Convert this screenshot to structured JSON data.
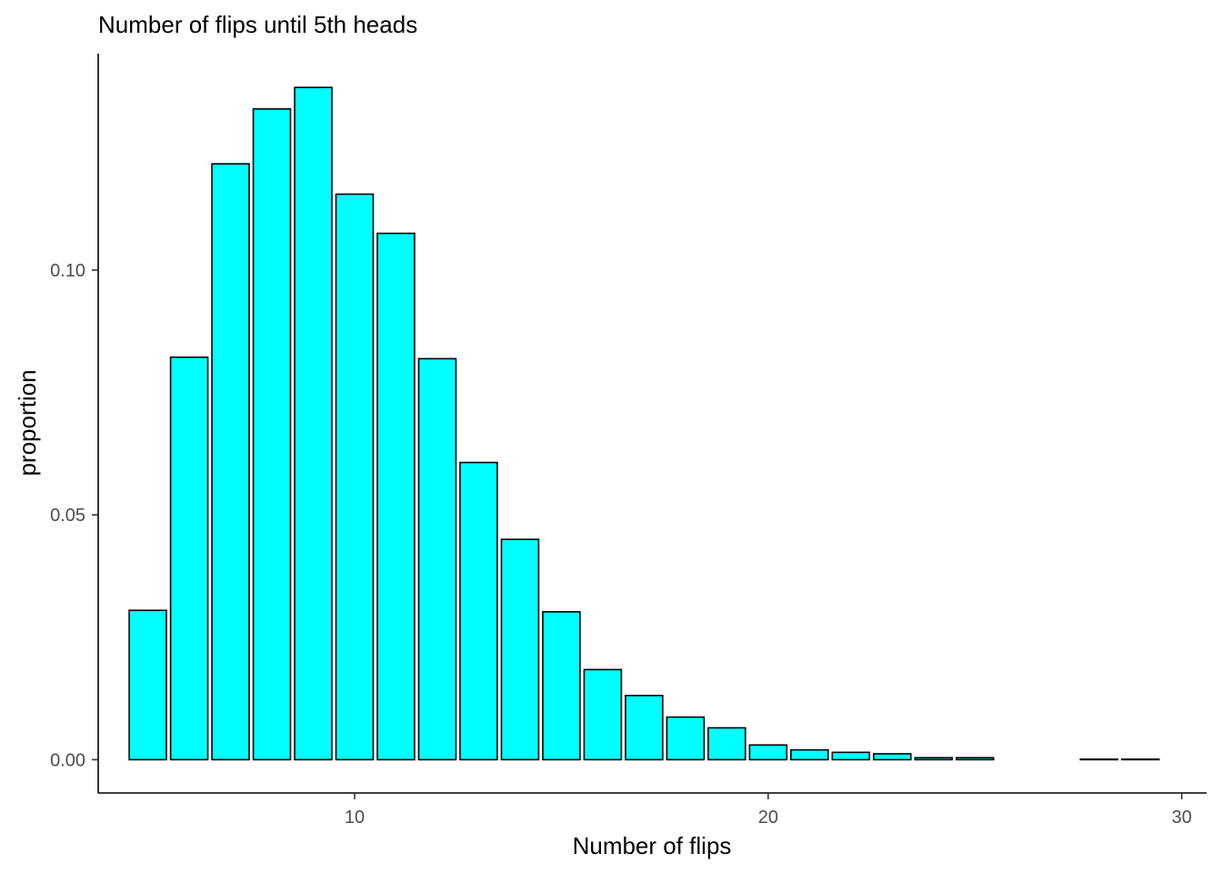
{
  "chart_data": {
    "type": "bar",
    "title": "Number of flips until 5th heads",
    "xlabel": "Number of flips",
    "ylabel": "proportion",
    "x": [
      5,
      6,
      7,
      8,
      9,
      10,
      11,
      12,
      13,
      14,
      15,
      16,
      17,
      18,
      19,
      20,
      21,
      22,
      23,
      24,
      25,
      28,
      29
    ],
    "values": [
      0.0305,
      0.0822,
      0.1217,
      0.1329,
      0.1373,
      0.1155,
      0.1075,
      0.0819,
      0.0607,
      0.045,
      0.0302,
      0.0184,
      0.0131,
      0.0087,
      0.0065,
      0.003,
      0.002,
      0.0015,
      0.0012,
      0.0004,
      0.0004,
      0.0001,
      0.0001
    ],
    "xlim": [
      3.8,
      30.6
    ],
    "ylim": [
      -0.0068,
      0.1442
    ],
    "x_ticks": [
      10,
      20,
      30
    ],
    "y_ticks": [
      0.0,
      0.05,
      0.1
    ],
    "x_tick_labels": [
      "10",
      "20",
      "30"
    ],
    "y_tick_labels": [
      "0.00",
      "0.05",
      "0.10"
    ],
    "grid": false,
    "bar_fill": "#00ffff",
    "bar_stroke": "#000000"
  }
}
